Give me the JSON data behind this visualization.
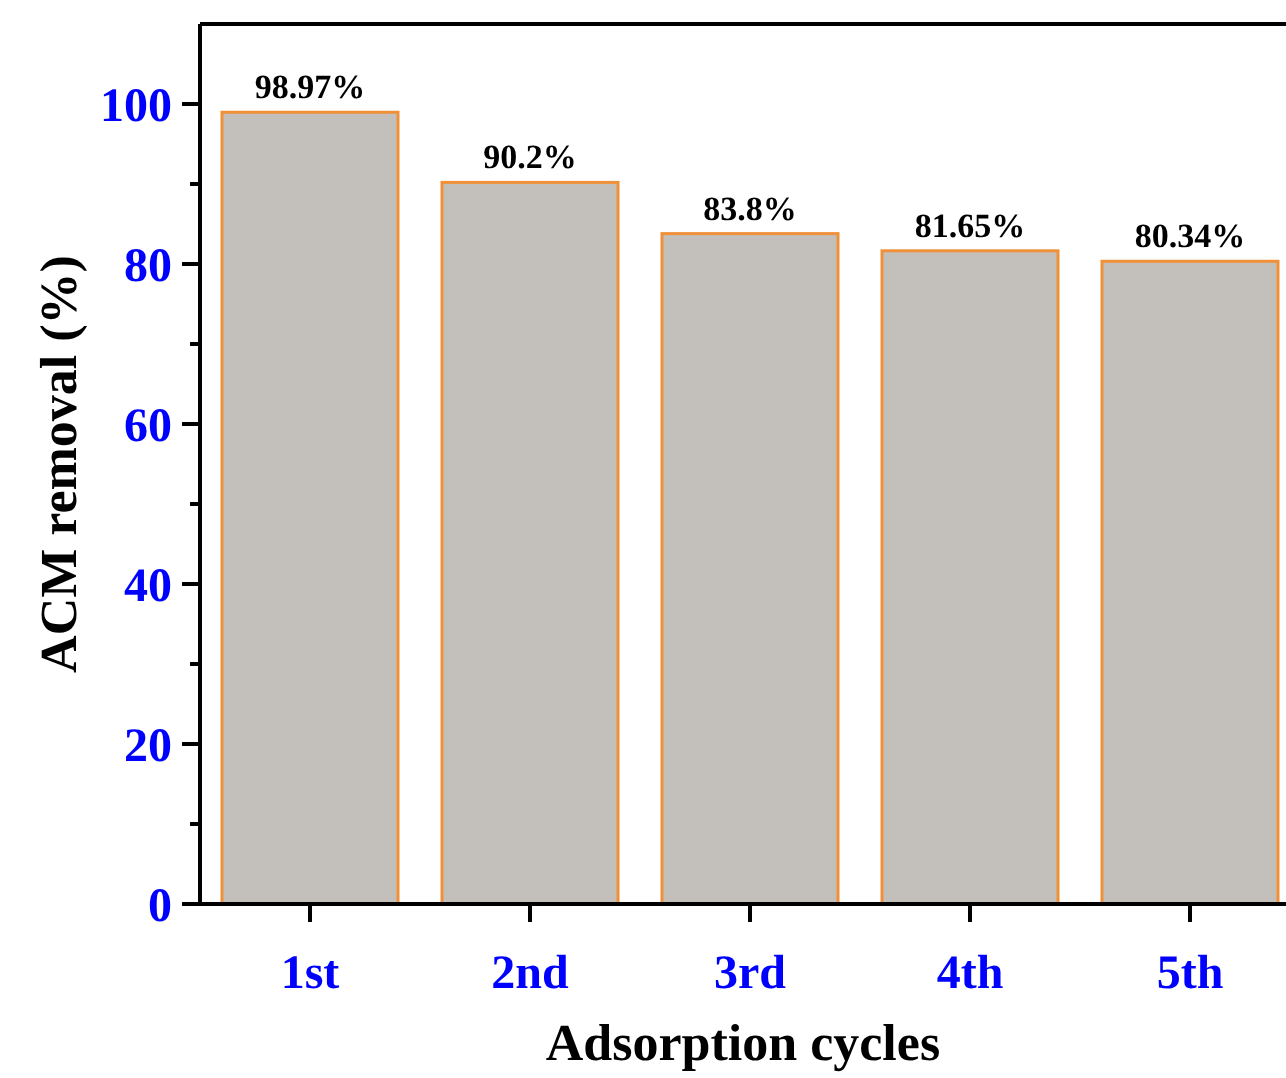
{
  "chart_data": {
    "type": "bar",
    "xlabel": "Adsorption  cycles",
    "ylabel": "ACM removal (%)",
    "categories": [
      "1st",
      "2nd",
      "3rd",
      "4th",
      "5th"
    ],
    "values": [
      98.97,
      90.2,
      83.8,
      81.65,
      80.34
    ],
    "value_labels": [
      "98.97%",
      "90.2%",
      "83.8%",
      "81.65%",
      "80.34%"
    ],
    "color": "#c3c0bc",
    "ylim": [
      0,
      110
    ],
    "yticks": [
      0,
      {
        "value": 10,
        "label": null
      },
      20,
      {
        "value": 30,
        "label": null
      },
      40,
      {
        "value": 50,
        "label": null
      },
      60,
      {
        "value": 70,
        "label": null
      },
      80,
      {
        "value": 90,
        "label": null
      },
      100
    ],
    "grid": false
  }
}
